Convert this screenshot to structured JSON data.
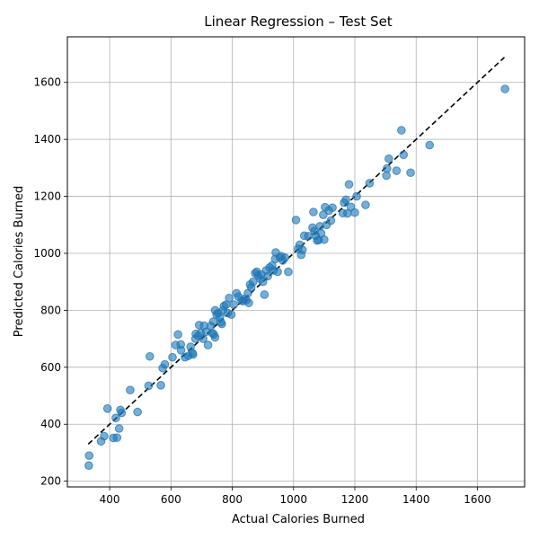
{
  "chart_data": {
    "type": "scatter",
    "title": "Linear Regression – Test Set",
    "xlabel": "Actual Calories Burned",
    "ylabel": "Predicted Calories Burned",
    "xlim": [
      262,
      1754
    ],
    "ylim": [
      180,
      1760
    ],
    "xticks": [
      400,
      600,
      800,
      1000,
      1200,
      1400,
      1600
    ],
    "yticks": [
      200,
      400,
      600,
      800,
      1000,
      1200,
      1400,
      1600
    ],
    "grid": true,
    "point_color": "#1f77b4",
    "reference_line": {
      "style": "dashed",
      "color": "#000000",
      "from": [
        330,
        330
      ],
      "to": [
        1688,
        1688
      ]
    },
    "points": [
      [
        332,
        255
      ],
      [
        333,
        290
      ],
      [
        372,
        340
      ],
      [
        382,
        358
      ],
      [
        393,
        455
      ],
      [
        412,
        352
      ],
      [
        420,
        422
      ],
      [
        424,
        353
      ],
      [
        431,
        385
      ],
      [
        435,
        450
      ],
      [
        439,
        440
      ],
      [
        467,
        520
      ],
      [
        491,
        443
      ],
      [
        527,
        535
      ],
      [
        531,
        638
      ],
      [
        567,
        537
      ],
      [
        573,
        597
      ],
      [
        580,
        610
      ],
      [
        605,
        635
      ],
      [
        615,
        678
      ],
      [
        623,
        715
      ],
      [
        632,
        680
      ],
      [
        633,
        660
      ],
      [
        646,
        635
      ],
      [
        657,
        640
      ],
      [
        664,
        672
      ],
      [
        670,
        650
      ],
      [
        672,
        645
      ],
      [
        680,
        700
      ],
      [
        681,
        717
      ],
      [
        689,
        710
      ],
      [
        692,
        748
      ],
      [
        697,
        720
      ],
      [
        705,
        700
      ],
      [
        708,
        746
      ],
      [
        715,
        725
      ],
      [
        721,
        678
      ],
      [
        730,
        745
      ],
      [
        735,
        720
      ],
      [
        738,
        760
      ],
      [
        740,
        715
      ],
      [
        744,
        800
      ],
      [
        744,
        705
      ],
      [
        749,
        785
      ],
      [
        754,
        790
      ],
      [
        760,
        776
      ],
      [
        763,
        758
      ],
      [
        766,
        752
      ],
      [
        770,
        800
      ],
      [
        773,
        815
      ],
      [
        780,
        820
      ],
      [
        785,
        790
      ],
      [
        790,
        843
      ],
      [
        797,
        785
      ],
      [
        805,
        820
      ],
      [
        814,
        860
      ],
      [
        820,
        848
      ],
      [
        830,
        835
      ],
      [
        835,
        832
      ],
      [
        840,
        840
      ],
      [
        846,
        836
      ],
      [
        851,
        860
      ],
      [
        854,
        826
      ],
      [
        858,
        890
      ],
      [
        862,
        880
      ],
      [
        868,
        900
      ],
      [
        875,
        930
      ],
      [
        880,
        935
      ],
      [
        885,
        922
      ],
      [
        892,
        910
      ],
      [
        895,
        925
      ],
      [
        900,
        900
      ],
      [
        905,
        855
      ],
      [
        911,
        940
      ],
      [
        916,
        920
      ],
      [
        922,
        950
      ],
      [
        930,
        957
      ],
      [
        935,
        940
      ],
      [
        940,
        980
      ],
      [
        942,
        1003
      ],
      [
        948,
        935
      ],
      [
        955,
        985
      ],
      [
        960,
        990
      ],
      [
        965,
        975
      ],
      [
        972,
        985
      ],
      [
        983,
        935
      ],
      [
        1008,
        1117
      ],
      [
        1015,
        1016
      ],
      [
        1020,
        1030
      ],
      [
        1025,
        995
      ],
      [
        1029,
        1012
      ],
      [
        1035,
        1062
      ],
      [
        1048,
        1060
      ],
      [
        1062,
        1090
      ],
      [
        1065,
        1145
      ],
      [
        1068,
        1078
      ],
      [
        1072,
        1062
      ],
      [
        1077,
        1045
      ],
      [
        1082,
        1047
      ],
      [
        1086,
        1095
      ],
      [
        1090,
        1070
      ],
      [
        1097,
        1135
      ],
      [
        1100,
        1048
      ],
      [
        1103,
        1162
      ],
      [
        1108,
        1100
      ],
      [
        1115,
        1150
      ],
      [
        1122,
        1115
      ],
      [
        1127,
        1160
      ],
      [
        1161,
        1141
      ],
      [
        1165,
        1178
      ],
      [
        1171,
        1188
      ],
      [
        1176,
        1140
      ],
      [
        1181,
        1242
      ],
      [
        1187,
        1163
      ],
      [
        1200,
        1143
      ],
      [
        1206,
        1200
      ],
      [
        1235,
        1170
      ],
      [
        1248,
        1246
      ],
      [
        1303,
        1273
      ],
      [
        1305,
        1298
      ],
      [
        1311,
        1332
      ],
      [
        1336,
        1290
      ],
      [
        1352,
        1432
      ],
      [
        1359,
        1346
      ],
      [
        1382,
        1283
      ],
      [
        1444,
        1380
      ],
      [
        1690,
        1577
      ]
    ]
  }
}
